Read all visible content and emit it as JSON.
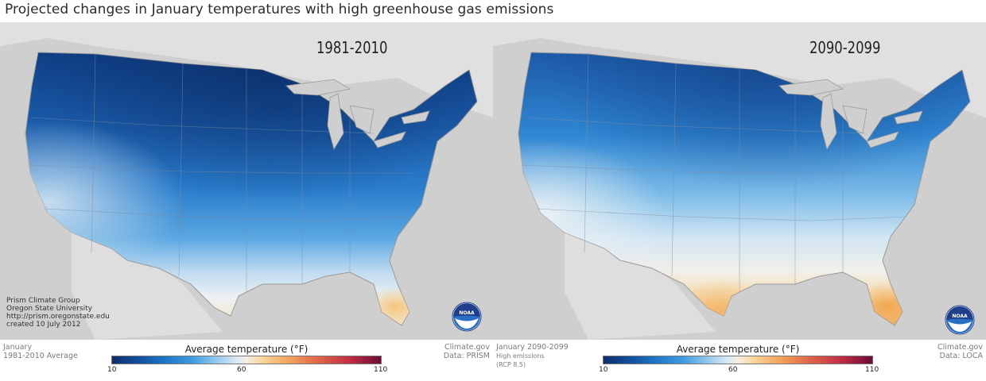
{
  "title": "Projected changes in January temperatures with high greenhouse gas emissions",
  "left_panel": {
    "period": "1981-2010",
    "credits": [
      "Prism Climate Group",
      "Oregon State University",
      "http://prism.oregonstate.edu",
      "created 10 July 2012"
    ],
    "footer_left": [
      "January",
      "1981-2010 Average"
    ],
    "footer_right": [
      "Climate.gov",
      "Data: PRISM"
    ]
  },
  "right_panel": {
    "period": "2090-2099",
    "footer_left": [
      "January 2090-2099",
      "High emissions",
      "(RCP 8.5)"
    ],
    "footer_right": [
      "Climate.gov",
      "Data: LOCA"
    ]
  },
  "legend": {
    "title": "Average temperature (°F)",
    "ticks": [
      "10",
      "60",
      "110"
    ],
    "range_f": [
      10,
      110
    ],
    "colors": [
      "#0c2f6b",
      "#1e78c8",
      "#8cc6ec",
      "#f5efe4",
      "#f3a25c",
      "#c22f45",
      "#6a0c35"
    ]
  },
  "logo": {
    "text": "NOAA",
    "colors": [
      "#1f3f8c",
      "#2b6fc4",
      "#ffffff"
    ]
  }
}
